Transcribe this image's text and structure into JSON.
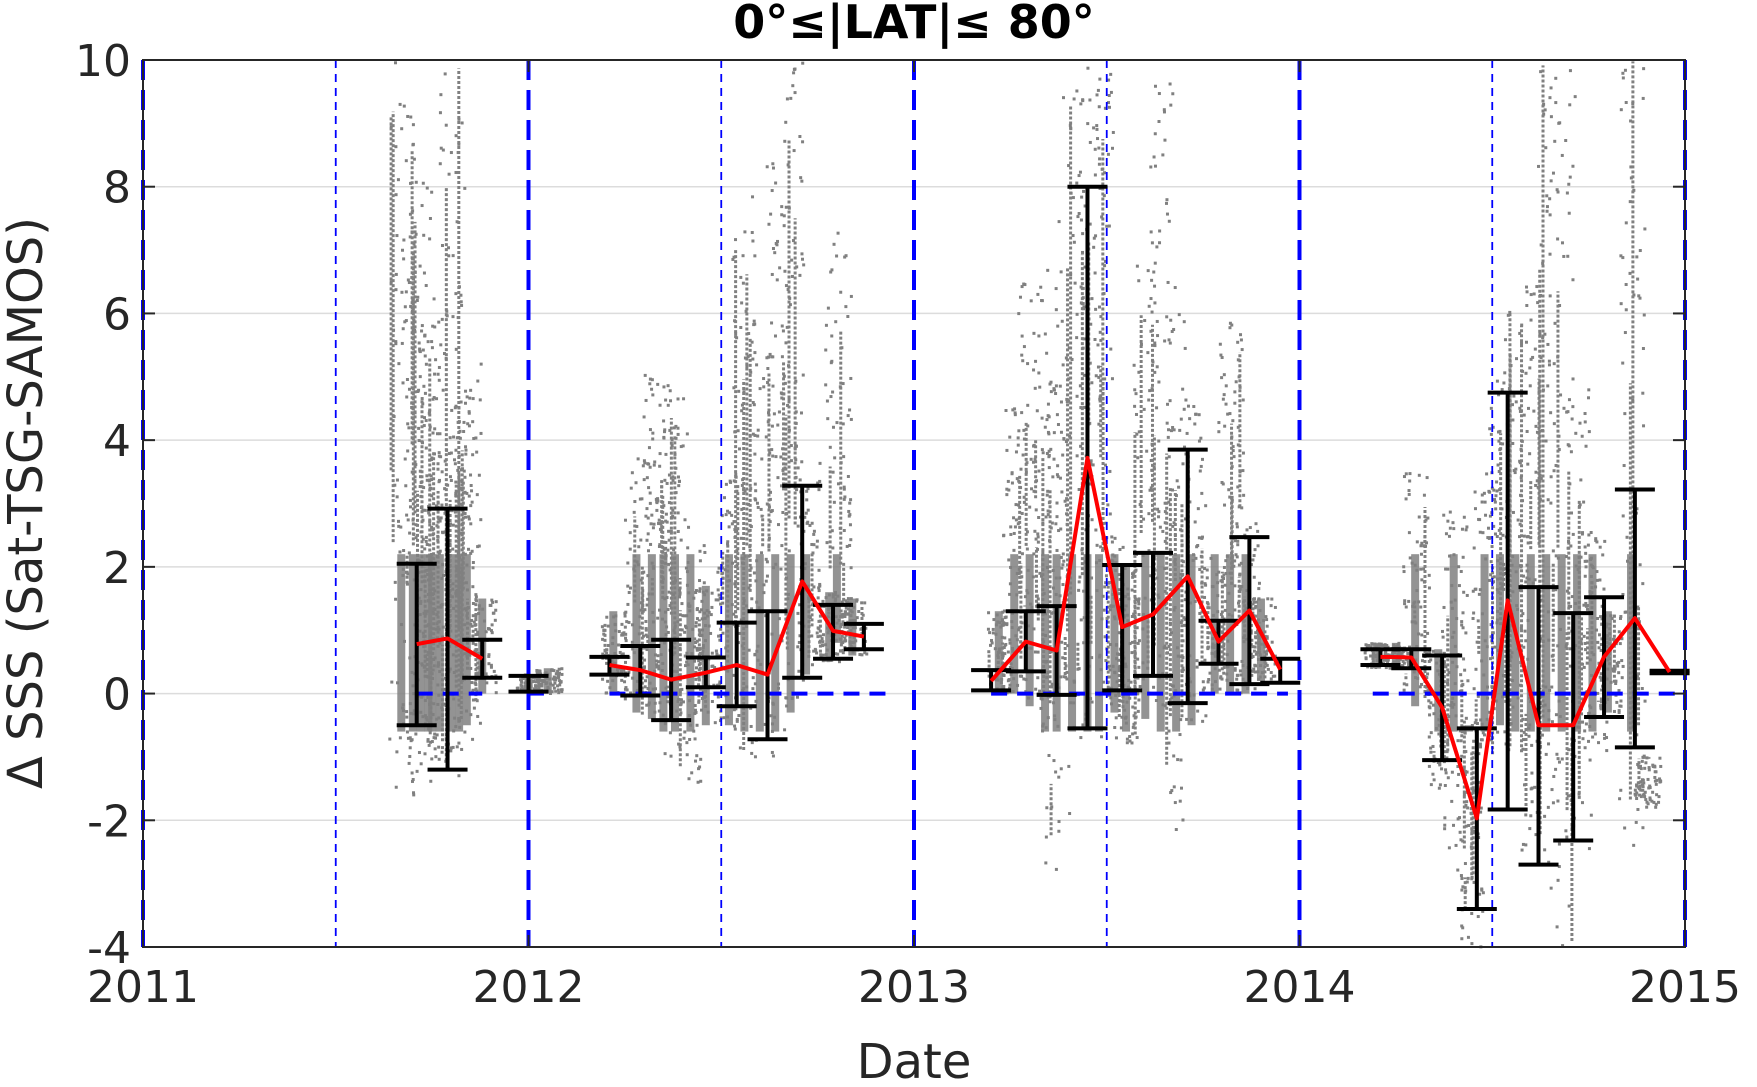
{
  "chart_data": {
    "type": "scatter",
    "title": "0°≤|LAT|≤ 80°",
    "xlabel": "Date",
    "ylabel": "Δ SSS (Sat-TSG-SAMOS)",
    "xlim": [
      2011.0,
      2015.0
    ],
    "ylim": [
      -4,
      10
    ],
    "x_ticks": [
      2011,
      2012,
      2013,
      2014,
      2015
    ],
    "x_tick_labels": [
      "2011",
      "2012",
      "2013",
      "2014",
      "2015"
    ],
    "y_ticks": [
      -4,
      -2,
      0,
      2,
      4,
      6,
      8,
      10
    ],
    "y_tick_labels": [
      "-4",
      "-2",
      "0",
      "2",
      "4",
      "6",
      "8",
      "10"
    ],
    "grid": "horizontal",
    "colors": {
      "scatter": "#808080",
      "mean_line": "#ff0000",
      "error_bars": "#000000",
      "reference_lines": "#0000ff",
      "grid": "#dcdcdc"
    },
    "reference_lines": {
      "year_boundaries": [
        2011.0,
        2012.0,
        2013.0,
        2014.0,
        2015.0
      ],
      "mid_year": [
        2011.5,
        2012.5,
        2013.5,
        2014.5
      ]
    },
    "scatter_clusters": [
      {
        "x": 2011.67,
        "ymin": -1.6,
        "ymax": 10
      },
      {
        "x": 2011.7,
        "ymin": -1.3,
        "ymax": 6.3
      },
      {
        "x": 2011.72,
        "ymin": -1.4,
        "ymax": 8.5
      },
      {
        "x": 2011.74,
        "ymin": -1.2,
        "ymax": 6.0
      },
      {
        "x": 2011.75,
        "ymin": -1.0,
        "ymax": 4.2
      },
      {
        "x": 2011.77,
        "ymin": -0.9,
        "ymax": 3.5
      },
      {
        "x": 2011.8,
        "ymin": -1.3,
        "ymax": 10
      },
      {
        "x": 2011.82,
        "ymin": -0.8,
        "ymax": 4.8
      },
      {
        "x": 2011.84,
        "ymin": -0.5,
        "ymax": 5.2
      },
      {
        "x": 2011.88,
        "ymin": 0.0,
        "ymax": 1.5
      },
      {
        "x": 2012.0,
        "ymin": 0.0,
        "ymax": 0.3
      },
      {
        "x": 2012.05,
        "ymin": 0.0,
        "ymax": 0.4
      },
      {
        "x": 2012.22,
        "ymin": 0.0,
        "ymax": 1.3
      },
      {
        "x": 2012.28,
        "ymin": -0.3,
        "ymax": 3.8
      },
      {
        "x": 2012.32,
        "ymin": -0.4,
        "ymax": 5.1
      },
      {
        "x": 2012.35,
        "ymin": -0.8,
        "ymax": 4.9
      },
      {
        "x": 2012.38,
        "ymin": -1.0,
        "ymax": 4.7
      },
      {
        "x": 2012.42,
        "ymin": -1.4,
        "ymax": 2.5
      },
      {
        "x": 2012.46,
        "ymin": -0.5,
        "ymax": 1.7
      },
      {
        "x": 2012.52,
        "ymin": -0.5,
        "ymax": 3.5
      },
      {
        "x": 2012.56,
        "ymin": -1.1,
        "ymax": 7.9
      },
      {
        "x": 2012.6,
        "ymin": -1.0,
        "ymax": 6.0
      },
      {
        "x": 2012.64,
        "ymin": -0.7,
        "ymax": 8.5
      },
      {
        "x": 2012.68,
        "ymin": -0.3,
        "ymax": 10
      },
      {
        "x": 2012.72,
        "ymin": 0.3,
        "ymax": 4.0
      },
      {
        "x": 2012.78,
        "ymin": 0.5,
        "ymax": 1.6
      },
      {
        "x": 2012.8,
        "ymin": 0.8,
        "ymax": 7.3
      },
      {
        "x": 2012.84,
        "ymin": 0.6,
        "ymax": 1.5
      },
      {
        "x": 2013.22,
        "ymin": 0.0,
        "ymax": 1.3
      },
      {
        "x": 2013.26,
        "ymin": 0.0,
        "ymax": 4.5
      },
      {
        "x": 2013.3,
        "ymin": -0.2,
        "ymax": 6.5
      },
      {
        "x": 2013.34,
        "ymin": -0.6,
        "ymax": 5.0
      },
      {
        "x": 2013.37,
        "ymin": -2.8,
        "ymax": 7.5
      },
      {
        "x": 2013.41,
        "ymin": -1.2,
        "ymax": 9.5
      },
      {
        "x": 2013.45,
        "ymin": -1.0,
        "ymax": 10
      },
      {
        "x": 2013.48,
        "ymin": -0.8,
        "ymax": 10
      },
      {
        "x": 2013.52,
        "ymin": -0.3,
        "ymax": 2.5
      },
      {
        "x": 2013.55,
        "ymin": -0.8,
        "ymax": 2.0
      },
      {
        "x": 2013.6,
        "ymin": -0.4,
        "ymax": 7.2
      },
      {
        "x": 2013.64,
        "ymin": -0.8,
        "ymax": 10
      },
      {
        "x": 2013.68,
        "ymin": -2.2,
        "ymax": 6.0
      },
      {
        "x": 2013.72,
        "ymin": -0.5,
        "ymax": 4.7
      },
      {
        "x": 2013.78,
        "ymin": 0.0,
        "ymax": 2.2
      },
      {
        "x": 2013.82,
        "ymin": 0.0,
        "ymax": 6.4
      },
      {
        "x": 2013.86,
        "ymin": 0.0,
        "ymax": 2.7
      },
      {
        "x": 2013.9,
        "ymin": 0.2,
        "ymax": 1.5
      },
      {
        "x": 2014.2,
        "ymin": 0.4,
        "ymax": 0.8
      },
      {
        "x": 2014.25,
        "ymin": 0.4,
        "ymax": 0.8
      },
      {
        "x": 2014.3,
        "ymin": -0.2,
        "ymax": 3.5
      },
      {
        "x": 2014.36,
        "ymin": -1.5,
        "ymax": 0.7
      },
      {
        "x": 2014.4,
        "ymin": -2.5,
        "ymax": 2.9
      },
      {
        "x": 2014.44,
        "ymin": -4.0,
        "ymax": -0.5
      },
      {
        "x": 2014.48,
        "ymin": -1.0,
        "ymax": 3.5
      },
      {
        "x": 2014.52,
        "ymin": -0.5,
        "ymax": 5.0
      },
      {
        "x": 2014.56,
        "ymin": -1.0,
        "ymax": 6.1
      },
      {
        "x": 2014.6,
        "ymin": -2.5,
        "ymax": 7.2
      },
      {
        "x": 2014.64,
        "ymin": -3.0,
        "ymax": 10
      },
      {
        "x": 2014.68,
        "ymin": -4.0,
        "ymax": 10
      },
      {
        "x": 2014.72,
        "ymin": -2.5,
        "ymax": 5.0
      },
      {
        "x": 2014.76,
        "ymin": -1.0,
        "ymax": 2.5
      },
      {
        "x": 2014.8,
        "ymin": -0.3,
        "ymax": 1.3
      },
      {
        "x": 2014.86,
        "ymin": -2.6,
        "ymax": 10
      },
      {
        "x": 2014.9,
        "ymin": -1.8,
        "ymax": -1.0
      }
    ],
    "series": [
      {
        "type": "line",
        "x": [
          2011.71,
          2011.79,
          2011.88
        ],
        "y": [
          0.78,
          0.87,
          0.55
        ]
      },
      {
        "type": "line",
        "x": [
          2012.21,
          2012.29,
          2012.37,
          2012.46,
          2012.54,
          2012.62,
          2012.71,
          2012.79,
          2012.87
        ],
        "y": [
          0.45,
          0.37,
          0.22,
          0.33,
          0.45,
          0.3,
          1.77,
          0.99,
          0.9
        ]
      },
      {
        "type": "line",
        "x": [
          2013.2,
          2013.29,
          2013.37,
          2013.45,
          2013.54,
          2013.62,
          2013.71,
          2013.79,
          2013.87,
          2013.95
        ],
        "y": [
          0.2,
          0.82,
          0.68,
          3.72,
          1.05,
          1.25,
          1.85,
          0.82,
          1.31,
          0.38
        ]
      },
      {
        "type": "line",
        "x": [
          2014.21,
          2014.29,
          2014.37,
          2014.46,
          2014.54,
          2014.62,
          2014.71,
          2014.79,
          2014.87,
          2014.96
        ],
        "y": [
          0.58,
          0.57,
          -0.22,
          -1.97,
          1.47,
          -0.5,
          -0.5,
          0.58,
          1.19,
          0.34
        ]
      }
    ],
    "error_bars": [
      {
        "x": 2011.71,
        "low": -0.5,
        "high": 2.05
      },
      {
        "x": 2011.79,
        "low": -1.2,
        "high": 2.92
      },
      {
        "x": 2011.88,
        "low": 0.25,
        "high": 0.85
      },
      {
        "x": 2012.0,
        "low": 0.03,
        "high": 0.28
      },
      {
        "x": 2012.21,
        "low": 0.3,
        "high": 0.58
      },
      {
        "x": 2012.29,
        "low": -0.03,
        "high": 0.75
      },
      {
        "x": 2012.37,
        "low": -0.42,
        "high": 0.85
      },
      {
        "x": 2012.46,
        "low": 0.1,
        "high": 0.57
      },
      {
        "x": 2012.54,
        "low": -0.2,
        "high": 1.12
      },
      {
        "x": 2012.62,
        "low": -0.72,
        "high": 1.3
      },
      {
        "x": 2012.71,
        "low": 0.25,
        "high": 3.28
      },
      {
        "x": 2012.79,
        "low": 0.55,
        "high": 1.4
      },
      {
        "x": 2012.87,
        "low": 0.7,
        "high": 1.1
      },
      {
        "x": 2013.2,
        "low": 0.05,
        "high": 0.37
      },
      {
        "x": 2013.29,
        "low": 0.35,
        "high": 1.3
      },
      {
        "x": 2013.37,
        "low": -0.02,
        "high": 1.38
      },
      {
        "x": 2013.45,
        "low": -0.55,
        "high": 8.0
      },
      {
        "x": 2013.54,
        "low": 0.05,
        "high": 2.03
      },
      {
        "x": 2013.62,
        "low": 0.28,
        "high": 2.22
      },
      {
        "x": 2013.71,
        "low": -0.15,
        "high": 3.85
      },
      {
        "x": 2013.79,
        "low": 0.47,
        "high": 1.15
      },
      {
        "x": 2013.87,
        "low": 0.15,
        "high": 2.47
      },
      {
        "x": 2013.95,
        "low": 0.17,
        "high": 0.55
      },
      {
        "x": 2014.21,
        "low": 0.45,
        "high": 0.7
      },
      {
        "x": 2014.29,
        "low": 0.4,
        "high": 0.7
      },
      {
        "x": 2014.37,
        "low": -1.05,
        "high": 0.6
      },
      {
        "x": 2014.46,
        "low": -3.4,
        "high": -0.55
      },
      {
        "x": 2014.54,
        "low": -1.83,
        "high": 4.75
      },
      {
        "x": 2014.62,
        "low": -2.7,
        "high": 1.68
      },
      {
        "x": 2014.71,
        "low": -2.32,
        "high": 1.27
      },
      {
        "x": 2014.79,
        "low": -0.37,
        "high": 1.52
      },
      {
        "x": 2014.87,
        "low": -0.85,
        "high": 3.22
      },
      {
        "x": 2014.96,
        "low": 0.32,
        "high": 0.36
      }
    ],
    "zero_reference_segments": [
      {
        "x0": 2011.71,
        "x1": 2011.88
      },
      {
        "x0": 2012.0,
        "x1": 2012.04
      },
      {
        "x0": 2012.21,
        "x1": 2012.93
      },
      {
        "x0": 2013.2,
        "x1": 2013.97
      },
      {
        "x0": 2014.19,
        "x1": 2015.0
      }
    ]
  }
}
